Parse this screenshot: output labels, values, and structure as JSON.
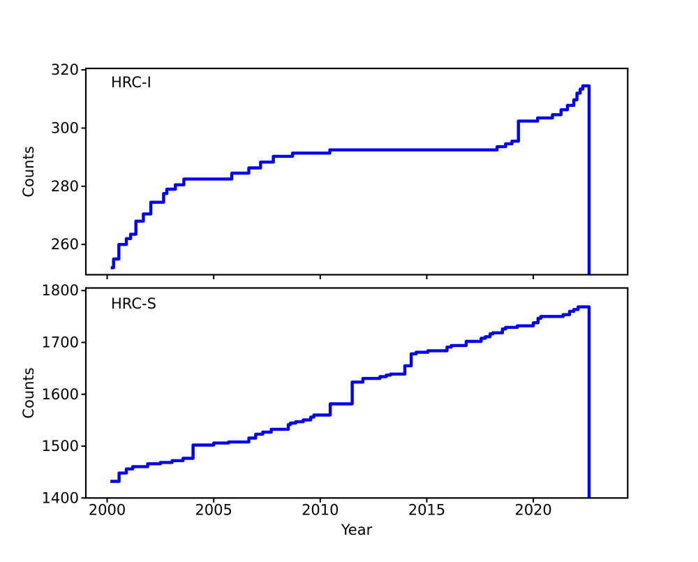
{
  "figure": {
    "background": "#ffffff",
    "line_color": "#0000ff",
    "axis_color": "#000000"
  },
  "chart_data": [
    {
      "type": "line",
      "line_style": "step-post",
      "label": "HRC-I",
      "xlabel": "",
      "ylabel": "Counts",
      "xlim": [
        1999.0,
        2024.43
      ],
      "ylim": [
        249.6,
        320.5
      ],
      "xticks": [
        2000,
        2005,
        2010,
        2015,
        2020
      ],
      "yticks": [
        260,
        280,
        300,
        320
      ],
      "xtick_labels_visible": false,
      "grid": false,
      "legend": "none",
      "series": [
        {
          "name": "hrc-i",
          "points": [
            [
              2000.17,
              252
            ],
            [
              2000.3,
              255
            ],
            [
              2000.55,
              260
            ],
            [
              2000.9,
              262
            ],
            [
              2001.1,
              263.5
            ],
            [
              2001.35,
              268
            ],
            [
              2001.7,
              270.5
            ],
            [
              2002.05,
              274.5
            ],
            [
              2002.65,
              277.5
            ],
            [
              2002.8,
              279
            ],
            [
              2003.2,
              280.5
            ],
            [
              2003.6,
              282.5
            ],
            [
              2005.85,
              284.5
            ],
            [
              2006.65,
              286.3
            ],
            [
              2007.2,
              288.3
            ],
            [
              2007.8,
              290.3
            ],
            [
              2008.7,
              291.4
            ],
            [
              2010.45,
              292.5
            ],
            [
              2018.3,
              293.6
            ],
            [
              2018.7,
              294.6
            ],
            [
              2019.0,
              295.5
            ],
            [
              2019.3,
              302.4
            ],
            [
              2020.2,
              303.5
            ],
            [
              2020.9,
              304.6
            ],
            [
              2021.3,
              306.3
            ],
            [
              2021.6,
              307.8
            ],
            [
              2021.9,
              309.7
            ],
            [
              2022.05,
              312
            ],
            [
              2022.2,
              313.4
            ],
            [
              2022.32,
              314.5
            ],
            [
              2022.62,
              249.7
            ]
          ]
        }
      ]
    },
    {
      "type": "line",
      "line_style": "step-post",
      "label": "HRC-S",
      "xlabel": "Year",
      "ylabel": "Counts",
      "xlim": [
        1999.0,
        2024.43
      ],
      "ylim": [
        1400,
        1805
      ],
      "xticks": [
        2000,
        2005,
        2010,
        2015,
        2020
      ],
      "yticks": [
        1400,
        1500,
        1600,
        1700,
        1800
      ],
      "xtick_labels_visible": true,
      "grid": false,
      "legend": "none",
      "series": [
        {
          "name": "hrc-s",
          "points": [
            [
              2000.15,
              1432
            ],
            [
              2000.56,
              1448
            ],
            [
              2000.9,
              1456
            ],
            [
              2001.2,
              1460.5
            ],
            [
              2001.9,
              1466
            ],
            [
              2002.5,
              1468.5
            ],
            [
              2003.05,
              1472
            ],
            [
              2003.56,
              1476.5
            ],
            [
              2004.03,
              1502
            ],
            [
              2005.0,
              1506
            ],
            [
              2005.7,
              1508
            ],
            [
              2006.65,
              1515.5
            ],
            [
              2006.97,
              1523
            ],
            [
              2007.3,
              1527
            ],
            [
              2007.7,
              1532.5
            ],
            [
              2008.5,
              1541.5
            ],
            [
              2008.6,
              1544.5
            ],
            [
              2008.85,
              1547
            ],
            [
              2009.2,
              1550.5
            ],
            [
              2009.55,
              1556
            ],
            [
              2009.7,
              1560
            ],
            [
              2010.47,
              1581.5
            ],
            [
              2011.5,
              1623.5
            ],
            [
              2012.0,
              1630.5
            ],
            [
              2012.8,
              1634
            ],
            [
              2013.1,
              1637
            ],
            [
              2013.3,
              1639
            ],
            [
              2013.97,
              1655
            ],
            [
              2014.27,
              1678
            ],
            [
              2014.5,
              1681
            ],
            [
              2015.05,
              1684
            ],
            [
              2015.95,
              1691
            ],
            [
              2016.15,
              1694
            ],
            [
              2016.85,
              1702
            ],
            [
              2017.55,
              1708
            ],
            [
              2017.75,
              1711
            ],
            [
              2017.97,
              1716.5
            ],
            [
              2018.1,
              1718.5
            ],
            [
              2018.55,
              1726
            ],
            [
              2018.7,
              1729
            ],
            [
              2019.25,
              1732
            ],
            [
              2020.0,
              1738
            ],
            [
              2020.22,
              1746.5
            ],
            [
              2020.35,
              1750
            ],
            [
              2021.4,
              1753.5
            ],
            [
              2021.7,
              1760
            ],
            [
              2021.9,
              1763.5
            ],
            [
              2022.1,
              1768.5
            ],
            [
              2022.62,
              1400
            ]
          ]
        }
      ]
    }
  ]
}
